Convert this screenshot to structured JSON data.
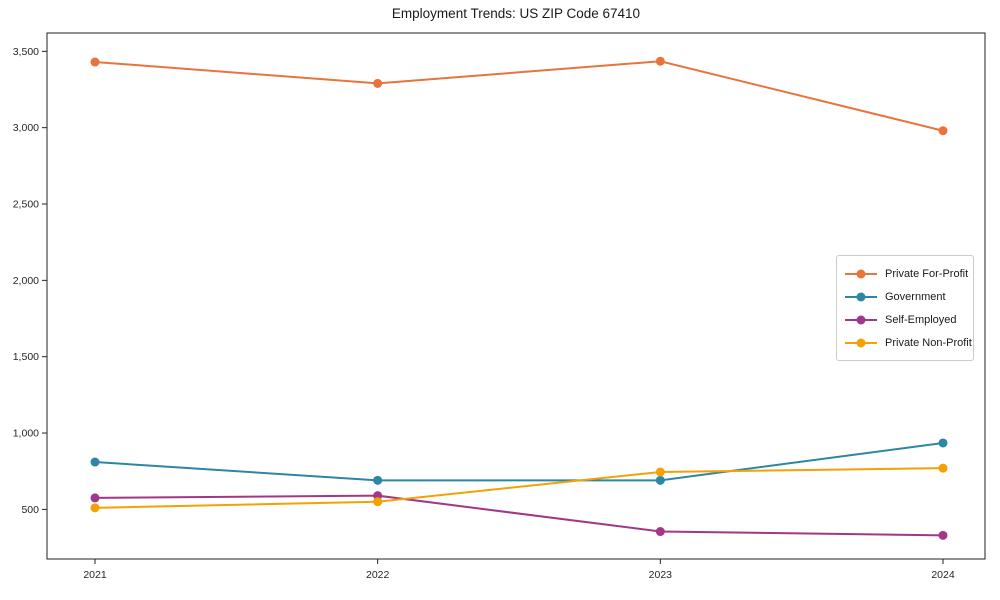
{
  "title": "Employment Trends: US ZIP Code 67410",
  "chart_data": {
    "type": "line",
    "title": "Employment Trends: US ZIP Code 67410",
    "xlabel": "",
    "ylabel": "",
    "categories": [
      "2021",
      "2022",
      "2023",
      "2024"
    ],
    "series": [
      {
        "name": "Private For-Profit",
        "color": "#e8743b",
        "values": [
          3430,
          3290,
          3435,
          2980
        ]
      },
      {
        "name": "Government",
        "color": "#2b87a5",
        "values": [
          810,
          690,
          690,
          935
        ]
      },
      {
        "name": "Self-Employed",
        "color": "#a23788",
        "values": [
          575,
          590,
          355,
          330
        ]
      },
      {
        "name": "Private Non-Profit",
        "color": "#f5a104",
        "values": [
          510,
          550,
          745,
          770
        ]
      }
    ],
    "yticks": [
      500,
      1000,
      1500,
      2000,
      2500,
      3000,
      3500
    ],
    "ytick_labels": [
      "500",
      "1,000",
      "1,500",
      "2,000",
      "2,500",
      "3,000",
      "3,500"
    ],
    "ylim": [
      175,
      3620
    ],
    "grid": false,
    "legend_position": "middle-right",
    "marker": "circle",
    "axis_color": "#222222"
  }
}
